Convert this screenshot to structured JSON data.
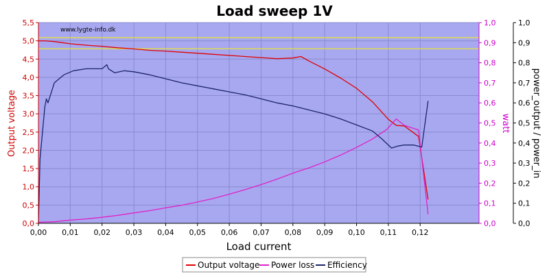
{
  "chart_data": {
    "type": "line",
    "title": "Load sweep 1V",
    "watermark": "www.lygte-info.dk",
    "xlabel": "Load current",
    "ylabel_left": "Output voltage",
    "ylabel_right1": "watt",
    "ylabel_right2": "power_output / power_in",
    "xlim": [
      0.0,
      0.1385
    ],
    "x_ticks": [
      "0,00",
      "0,01",
      "0,02",
      "0,03",
      "0,04",
      "0,05",
      "0,06",
      "0,07",
      "0,08",
      "0,09",
      "0,10",
      "0,11",
      "0,12"
    ],
    "y_left_lim": [
      0.0,
      5.5
    ],
    "y_left_ticks": [
      "0,0",
      "0,5",
      "1,0",
      "1,5",
      "2,0",
      "2,5",
      "3,0",
      "3,5",
      "4,0",
      "4,5",
      "5,0",
      "5,5"
    ],
    "y_right_lim": [
      0.0,
      1.0
    ],
    "y_right_ticks": [
      "0,0",
      "0,1",
      "0,2",
      "0,3",
      "0,4",
      "0,5",
      "0,6",
      "0,7",
      "0,8",
      "0,9",
      "1,0"
    ],
    "reference_lines": [
      0.925,
      0.87
    ],
    "colors": {
      "plot_bg": "#a8a8f0",
      "grid": "#8a8ad0",
      "reference": "#e8e830",
      "voltage": "#e00000",
      "power_loss": "#e020c8",
      "efficiency": "#1a2468",
      "left_axis": "#cc0000",
      "right_axis1": "#cc00cc",
      "right_axis2": "#000000"
    },
    "series": [
      {
        "name": "Output voltage",
        "axis": "left",
        "color": "#e00000",
        "x": [
          0,
          0.002,
          0.005,
          0.01,
          0.015,
          0.02,
          0.025,
          0.03,
          0.035,
          0.04,
          0.045,
          0.05,
          0.055,
          0.06,
          0.065,
          0.07,
          0.075,
          0.08,
          0.0825,
          0.085,
          0.09,
          0.095,
          0.1,
          0.105,
          0.11,
          0.1125,
          0.115,
          0.1195,
          0.1225
        ],
        "y": [
          5.0,
          5.0,
          4.98,
          4.92,
          4.88,
          4.85,
          4.81,
          4.78,
          4.74,
          4.72,
          4.69,
          4.66,
          4.63,
          4.6,
          4.57,
          4.54,
          4.51,
          4.53,
          4.57,
          4.45,
          4.23,
          3.98,
          3.7,
          3.33,
          2.85,
          2.68,
          2.67,
          2.38,
          0.65
        ]
      },
      {
        "name": "Power loss",
        "axis": "right",
        "color": "#e020c8",
        "x": [
          0,
          0.005,
          0.01,
          0.015,
          0.02,
          0.025,
          0.03,
          0.035,
          0.04,
          0.045,
          0.05,
          0.055,
          0.06,
          0.065,
          0.07,
          0.075,
          0.08,
          0.085,
          0.09,
          0.095,
          0.1,
          0.105,
          0.1095,
          0.1125,
          0.115,
          0.1195,
          0.1225
        ],
        "y": [
          0.005,
          0.008,
          0.016,
          0.022,
          0.03,
          0.04,
          0.052,
          0.063,
          0.077,
          0.09,
          0.106,
          0.124,
          0.145,
          0.168,
          0.193,
          0.22,
          0.25,
          0.276,
          0.306,
          0.34,
          0.378,
          0.42,
          0.468,
          0.52,
          0.488,
          0.465,
          0.045
        ]
      },
      {
        "name": "Efficiency",
        "axis": "right",
        "color": "#1a2468",
        "x": [
          0,
          0.0005,
          0.002,
          0.0025,
          0.003,
          0.005,
          0.008,
          0.011,
          0.015,
          0.02,
          0.0215,
          0.022,
          0.024,
          0.027,
          0.03,
          0.035,
          0.04,
          0.045,
          0.05,
          0.055,
          0.06,
          0.065,
          0.07,
          0.075,
          0.08,
          0.085,
          0.09,
          0.095,
          0.1,
          0.105,
          0.108,
          0.111,
          0.113,
          0.115,
          0.118,
          0.1205,
          0.1225
        ],
        "y": [
          0.0,
          0.32,
          0.58,
          0.62,
          0.6,
          0.7,
          0.74,
          0.76,
          0.77,
          0.77,
          0.79,
          0.77,
          0.75,
          0.76,
          0.755,
          0.74,
          0.72,
          0.7,
          0.685,
          0.67,
          0.655,
          0.64,
          0.62,
          0.6,
          0.585,
          0.565,
          0.545,
          0.52,
          0.49,
          0.46,
          0.42,
          0.375,
          0.385,
          0.39,
          0.39,
          0.38,
          0.61
        ]
      }
    ],
    "legend": {
      "placement": "bottom-center",
      "items": [
        "Output voltage",
        "Power loss",
        "Efficiency"
      ]
    }
  }
}
